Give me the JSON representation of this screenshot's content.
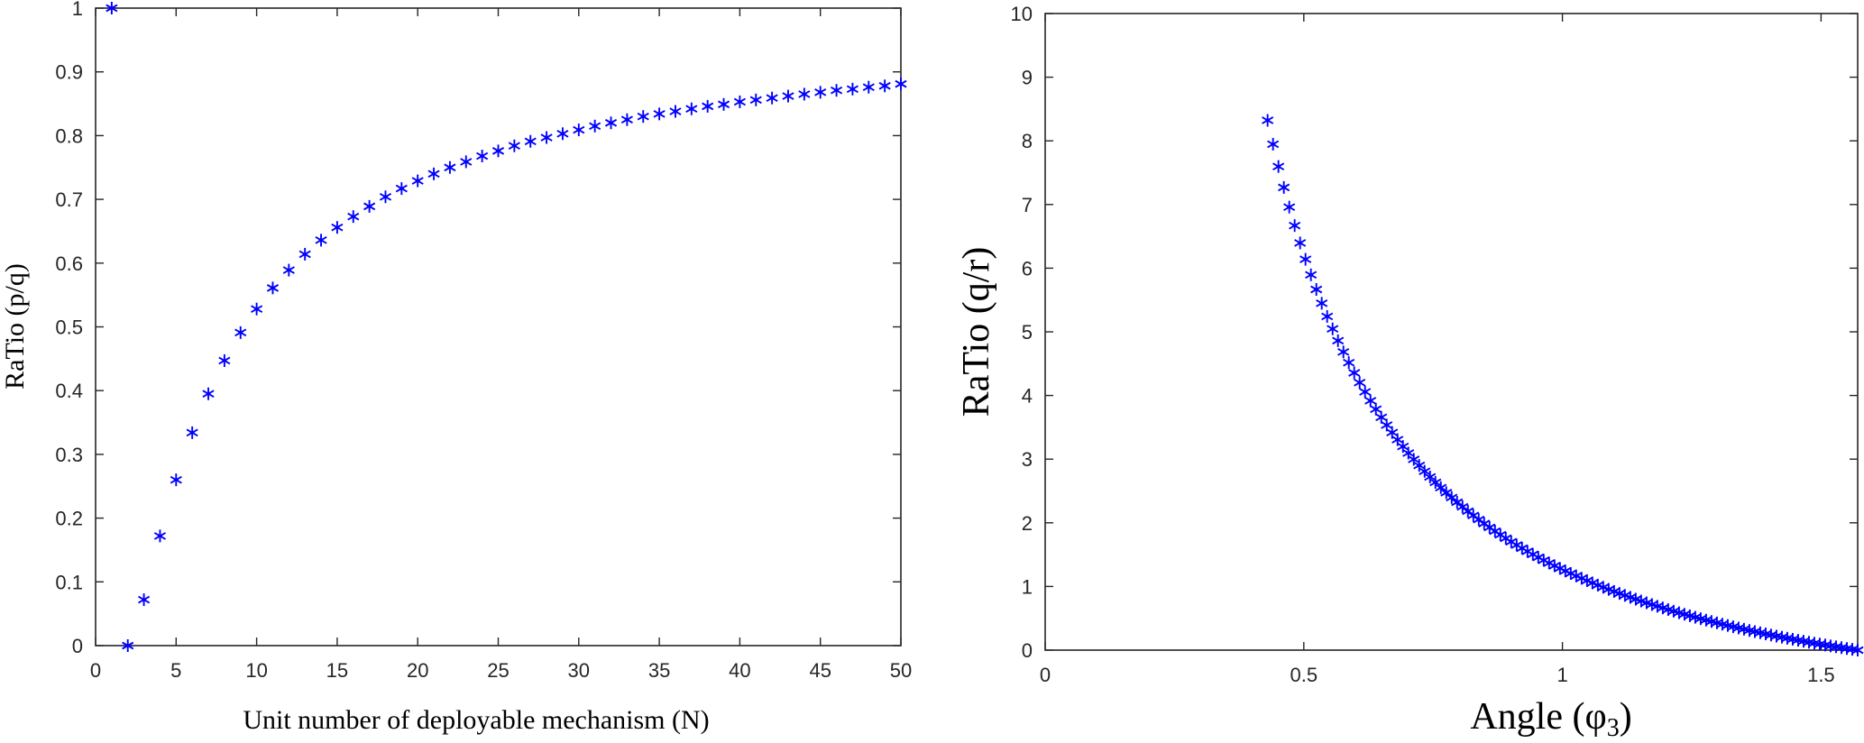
{
  "chart_data": [
    {
      "type": "scatter",
      "marker": "asterisk",
      "color": "#0000ff",
      "xlabel": "Unit number of deployable mechanism (N)",
      "ylabel": "RaTio (p/q)",
      "xlim": [
        0,
        50
      ],
      "ylim": [
        0,
        1
      ],
      "xticks": [
        "0",
        "5",
        "10",
        "15",
        "20",
        "25",
        "30",
        "35",
        "40",
        "45",
        "50"
      ],
      "yticks": [
        "0",
        "0.1",
        "0.2",
        "0.3",
        "0.4",
        "0.5",
        "0.6",
        "0.7",
        "0.8",
        "0.9",
        "1"
      ],
      "x": [
        1,
        2,
        3,
        4,
        5,
        6,
        7,
        8,
        9,
        10,
        11,
        12,
        13,
        14,
        15,
        16,
        17,
        18,
        19,
        20,
        21,
        22,
        23,
        24,
        25,
        26,
        27,
        28,
        29,
        30,
        31,
        32,
        33,
        34,
        35,
        36,
        37,
        38,
        39,
        40,
        41,
        42,
        43,
        44,
        45,
        46,
        47,
        48,
        49,
        50
      ],
      "y": [
        1.0,
        0.0,
        0.072,
        0.172,
        0.26,
        0.334,
        0.395,
        0.447,
        0.491,
        0.528,
        0.561,
        0.589,
        0.614,
        0.636,
        0.656,
        0.673,
        0.689,
        0.704,
        0.717,
        0.729,
        0.74,
        0.75,
        0.759,
        0.768,
        0.776,
        0.784,
        0.791,
        0.797,
        0.803,
        0.809,
        0.815,
        0.82,
        0.825,
        0.83,
        0.834,
        0.838,
        0.842,
        0.846,
        0.849,
        0.853,
        0.856,
        0.859,
        0.862,
        0.865,
        0.868,
        0.871,
        0.873,
        0.876,
        0.878,
        0.881
      ]
    },
    {
      "type": "scatter",
      "marker": "asterisk",
      "color": "#0000ff",
      "xlabel": "Angle (φ",
      "xlabel_subscript": "3",
      "xlabel_close": ")",
      "ylabel": "RaTio (q/r)",
      "xlim": [
        0,
        1.5708
      ],
      "ylim": [
        0,
        10
      ],
      "xticks": [
        "0",
        "0.5",
        "1",
        "1.5"
      ],
      "xtick_values": [
        0,
        0.5,
        1,
        1.5
      ],
      "yticks": [
        "0",
        "1",
        "2",
        "3",
        "4",
        "5",
        "6",
        "7",
        "8",
        "9",
        "10"
      ],
      "curve": "y = 1.2 * (cot(x)^2 + cot(x)) sampled from x = 0.43 to 1.5708, 110 points"
    }
  ]
}
